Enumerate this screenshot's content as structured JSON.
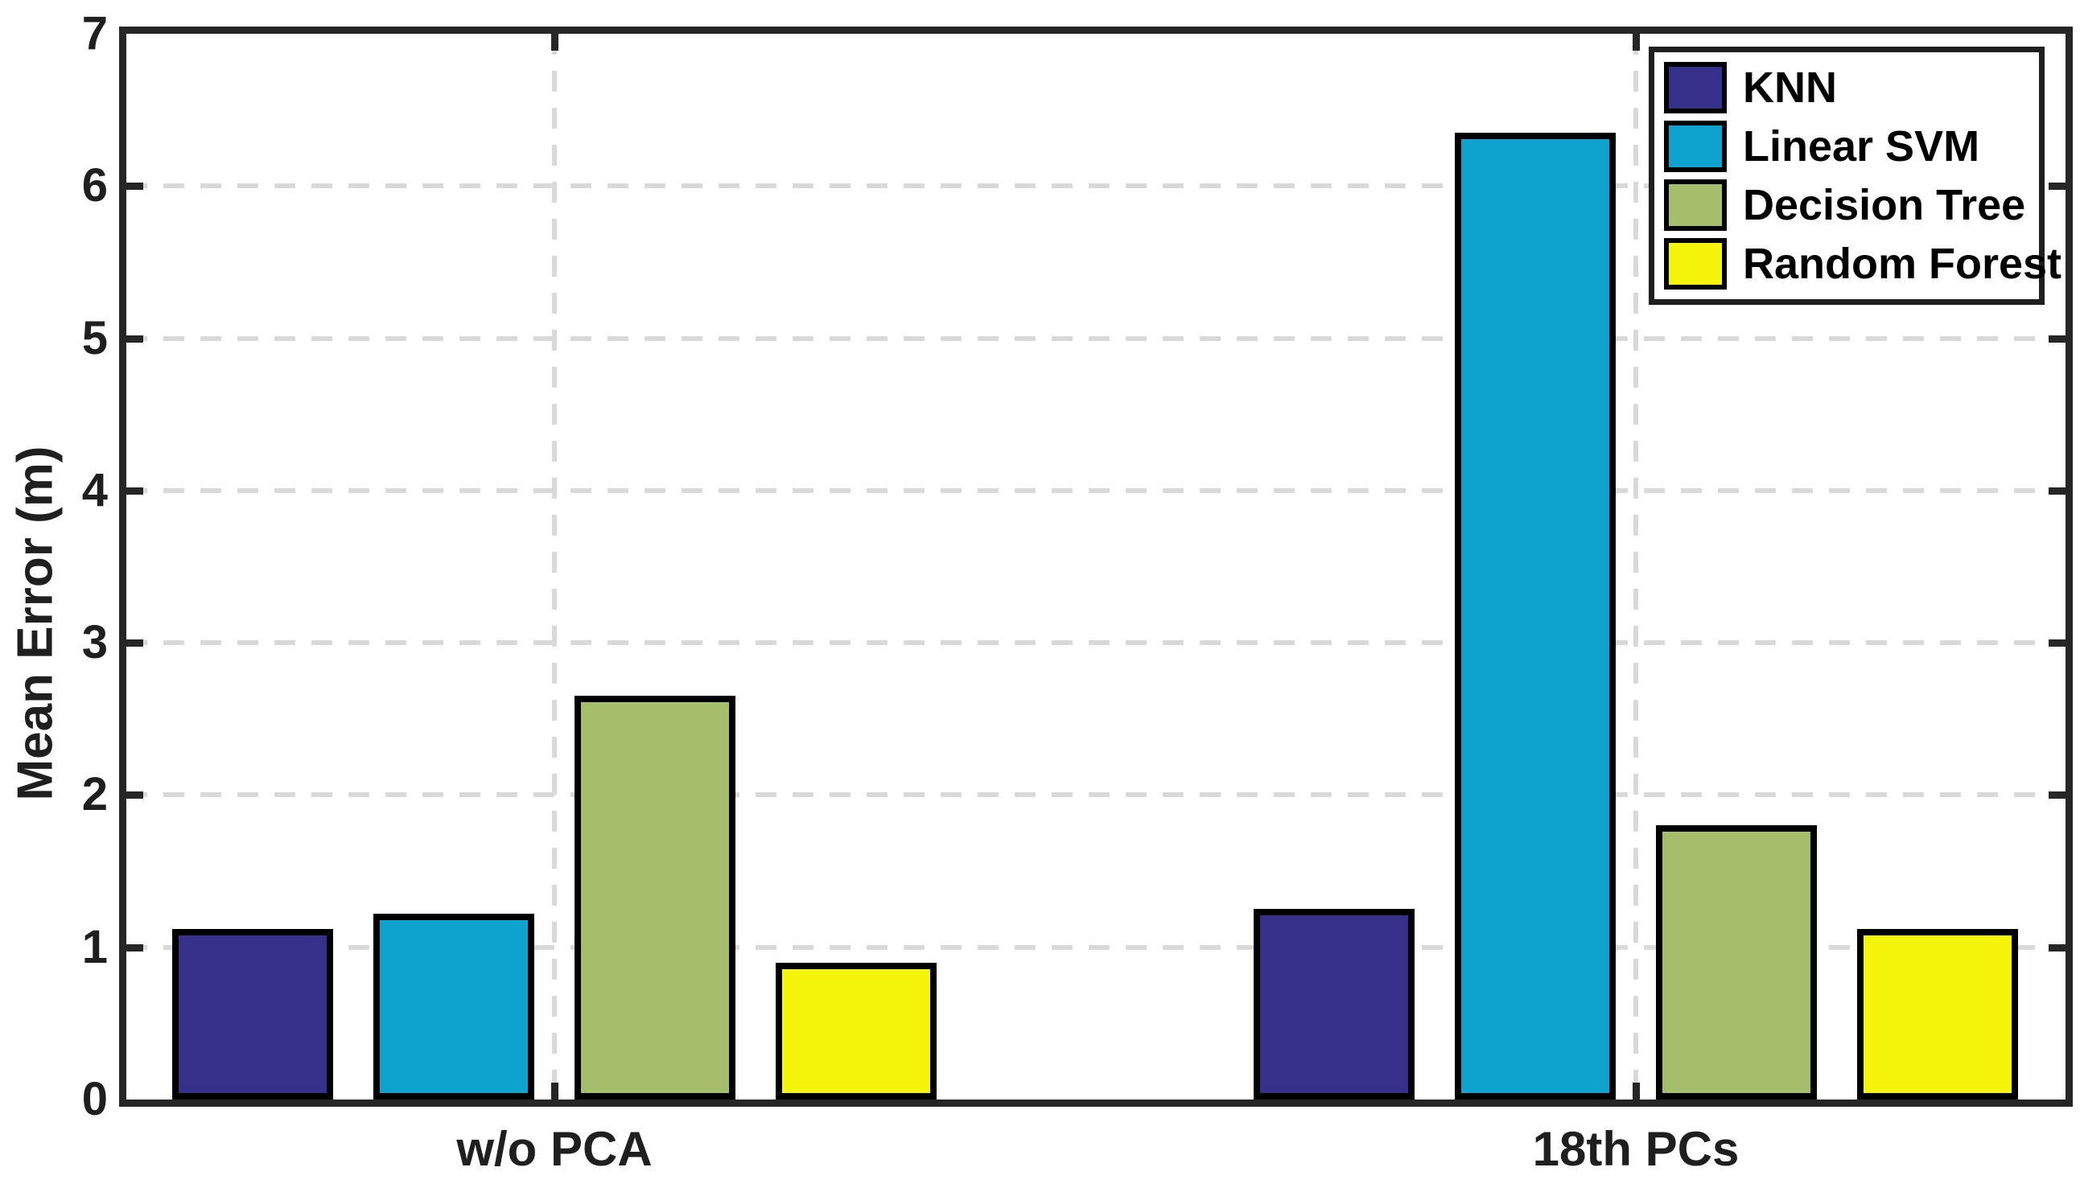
{
  "chart_data": {
    "type": "bar",
    "title": "",
    "ylabel": "Mean Error (m)",
    "xlabel": "",
    "categories": [
      "w/o PCA",
      "18th PCs"
    ],
    "series": [
      {
        "name": "KNN",
        "color": "#37308A",
        "values": [
          1.12,
          1.25
        ]
      },
      {
        "name": "Linear SVM",
        "color": "#0EA2CF",
        "values": [
          1.22,
          6.35
        ]
      },
      {
        "name": "Decision Tree",
        "color": "#A5BE6B",
        "values": [
          2.65,
          1.8
        ]
      },
      {
        "name": "Random Forest",
        "color": "#F4F50A",
        "values": [
          0.9,
          1.12
        ]
      }
    ],
    "ylim": [
      0,
      7
    ],
    "yticks": [
      0,
      1,
      2,
      3,
      4,
      5,
      6,
      7
    ],
    "grid": {
      "horizontal": true,
      "vertical": true,
      "style": "dashed",
      "color": "#D9D9D9"
    },
    "legend_position": "top-right",
    "axis_color": "#262626",
    "bar_edge_color": "#000000",
    "text_color": "#1f1f1f"
  }
}
